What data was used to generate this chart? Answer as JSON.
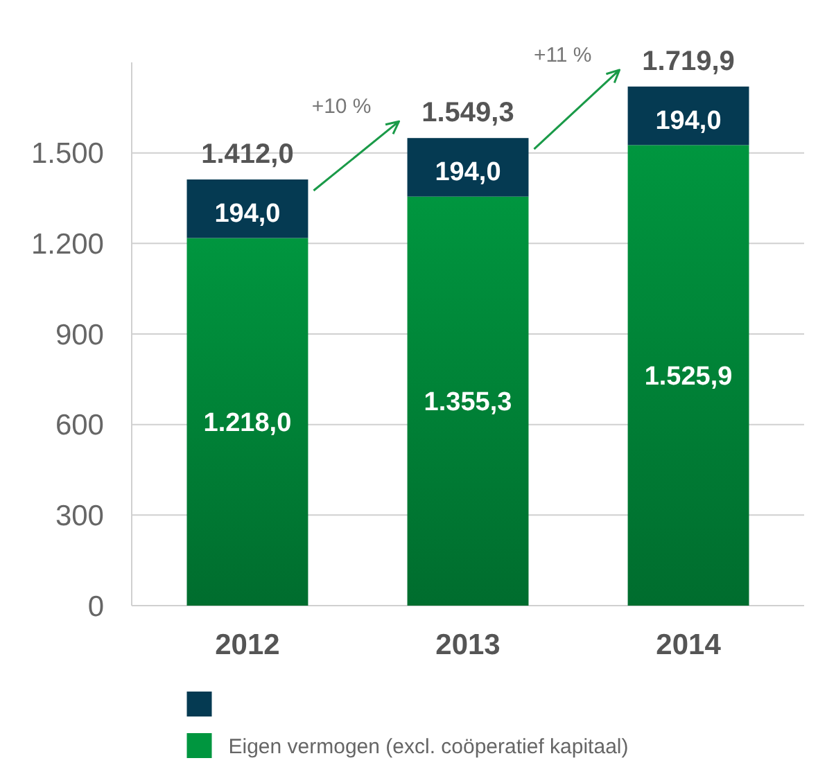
{
  "chart_data": {
    "type": "bar",
    "stacked": true,
    "categories": [
      "2012",
      "2013",
      "2014"
    ],
    "series": [
      {
        "name": "Eigen vermogen (excl. coöperatief kapitaal)",
        "color": "#00963f",
        "values": [
          1218.0,
          1355.3,
          1525.9
        ],
        "value_labels": [
          "1.218,0",
          "1.355,3",
          "1.525,9"
        ]
      },
      {
        "color": "#053a52",
        "values": [
          194.0,
          194.0,
          194.0
        ],
        "value_labels": [
          "194,0",
          "194,0",
          "194,0"
        ]
      }
    ],
    "totals": [
      "1.412,0",
      "1.549,3",
      "1.719,9"
    ],
    "annotations": [
      "+10 %",
      "+11 %"
    ],
    "ylim": [
      0,
      1800
    ],
    "yticks": [
      0,
      {
        "value": 300,
        "label": "300"
      },
      {
        "value": 600,
        "label": "600"
      },
      {
        "value": 900,
        "label": "900"
      },
      {
        "value": 1200,
        "label": "1.200"
      },
      {
        "value": 1500,
        "label": "1.500"
      }
    ],
    "grid": "y",
    "legend": "bottom"
  }
}
